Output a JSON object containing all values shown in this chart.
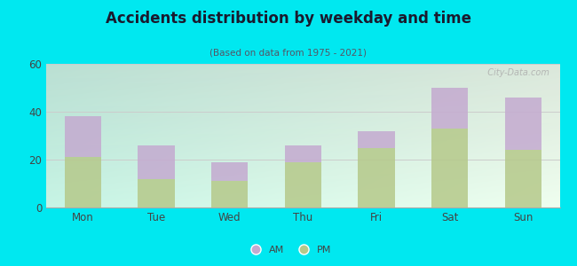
{
  "title": "Accidents distribution by weekday and time",
  "subtitle": "(Based on data from 1975 - 2021)",
  "categories": [
    "Mon",
    "Tue",
    "Wed",
    "Thu",
    "Fri",
    "Sat",
    "Sun"
  ],
  "pm_values": [
    21,
    12,
    11,
    19,
    25,
    33,
    24
  ],
  "am_values": [
    17,
    14,
    8,
    7,
    7,
    17,
    22
  ],
  "pm_color": "#b5c98a",
  "am_color": "#c4aad0",
  "background_color": "#00e8f0",
  "ylim": [
    0,
    60
  ],
  "yticks": [
    0,
    20,
    40,
    60
  ],
  "legend_am": "AM",
  "legend_pm": "PM",
  "bar_width": 0.5,
  "watermark": "  City-Data.com"
}
